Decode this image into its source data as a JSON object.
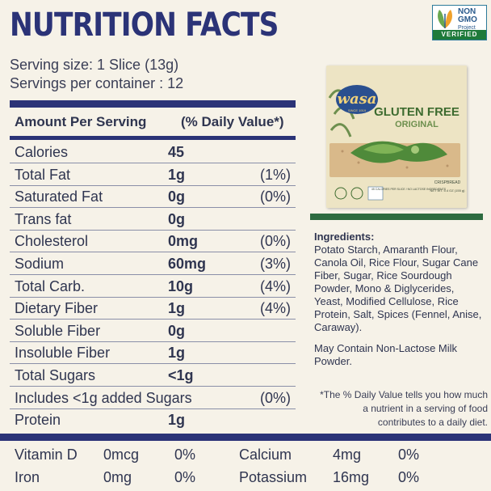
{
  "title": "NUTRITION FACTS",
  "badge": {
    "line1": "NON",
    "line2": "GMO",
    "line3": "Project",
    "verified": "VERIFIED"
  },
  "serving_size": "Serving size: 1 Slice (13g)",
  "servings_per_container": "Servings per container : 12",
  "header": {
    "amount": "Amount Per Serving",
    "dv": "(% Daily Value*)"
  },
  "rows": [
    {
      "name": "Calories",
      "amount": "45",
      "dv": ""
    },
    {
      "name": "Total Fat",
      "amount": "1g",
      "dv": "(1%)"
    },
    {
      "name": "Saturated Fat",
      "amount": "0g",
      "dv": "(0%)"
    },
    {
      "name": "Trans fat",
      "amount": "0g",
      "dv": ""
    },
    {
      "name": "Cholesterol",
      "amount": "0mg",
      "dv": "(0%)"
    },
    {
      "name": "Sodium",
      "amount": "60mg",
      "dv": "(3%)"
    },
    {
      "name": "Total Carb.",
      "amount": "10g",
      "dv": "(4%)"
    },
    {
      "name": "Dietary Fiber",
      "amount": "1g",
      "dv": "(4%)"
    },
    {
      "name": "Soluble Fiber",
      "amount": "0g",
      "dv": ""
    },
    {
      "name": "Insoluble Fiber",
      "amount": "1g",
      "dv": ""
    },
    {
      "name": "Total Sugars",
      "amount": "<1g",
      "dv": ""
    },
    {
      "name": "Includes <1g added Sugars",
      "amount": "",
      "dv": "(0%)"
    },
    {
      "name": "Protein",
      "amount": "1g",
      "dv": ""
    }
  ],
  "vitamins": [
    {
      "name": "Vitamin D",
      "amount": "0mcg",
      "dv": "0%"
    },
    {
      "name": "Calcium",
      "amount": "4mg",
      "dv": "0%"
    },
    {
      "name": "Iron",
      "amount": "0mg",
      "dv": "0%"
    },
    {
      "name": "Potassium",
      "amount": "16mg",
      "dv": "0%"
    }
  ],
  "ingredients_heading": "Ingredients:",
  "ingredients": "Potato Starch, Amaranth Flour, Canola Oil, Rice Flour, Sugar Cane Fiber, Sugar, Rice Sourdough Powder, Mono & Diglycerides, Yeast, Modified Cellulose, Rice Protein, Salt, Spices (Fennel, Anise, Caraway).",
  "allergen": "May Contain Non-Lactose Milk Powder.",
  "footnote": "*The % Daily Value tells you how much a nutrient in a serving of food contributes to a daily diet.",
  "package": {
    "brand": "wasa",
    "since": "SINCE 1919",
    "name": "GLUTEN FREE",
    "variant": "ORIGINAL",
    "type": "CRISPBREAD",
    "weight": "NET WT. 5.4 OZ (155 g)",
    "claims": "45 CALORIES PER SLICE / NO LACTOSE INGREDIENTS"
  }
}
